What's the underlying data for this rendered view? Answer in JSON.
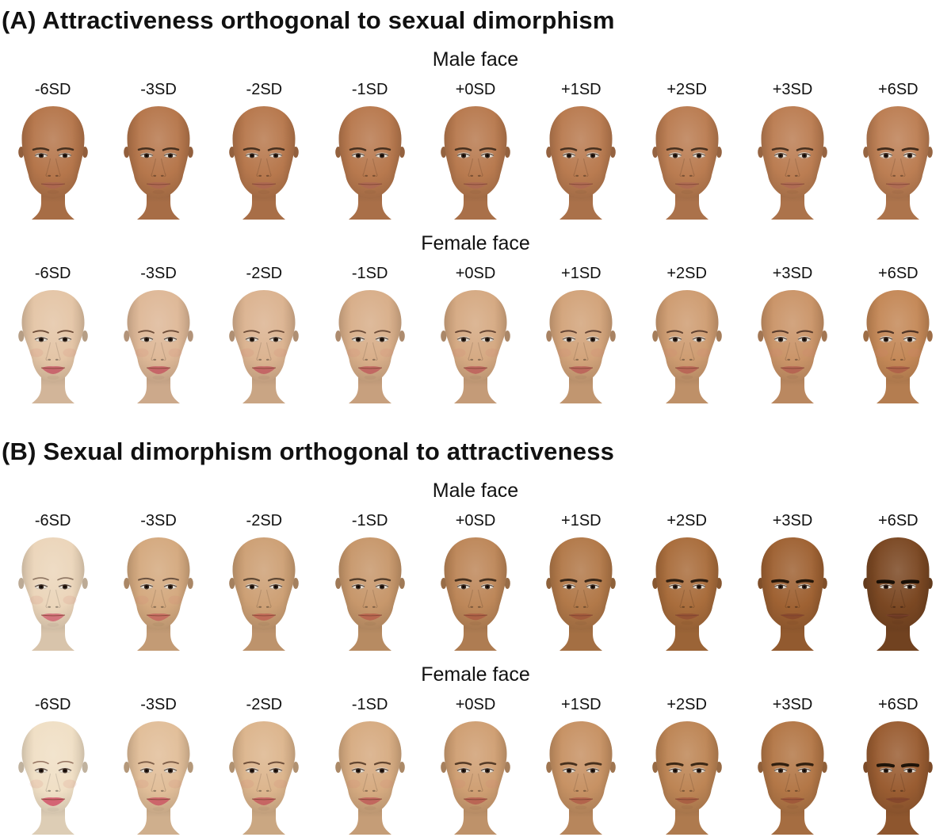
{
  "figure": {
    "panels": [
      {
        "id": "A",
        "title": "(A) Attractiveness orthogonal to sexual dimorphism",
        "rows": [
          {
            "header": "Male face",
            "faces": [
              {
                "label": "-6SD",
                "skin": "#b5764b",
                "lip": "#ab6650",
                "brow": "#46301f",
                "brow_weight": 2.5,
                "jaw_width": 31,
                "eye_open": 0.56,
                "lip_fullness": 6.2,
                "blush": false
              },
              {
                "label": "-3SD",
                "skin": "#b6774c",
                "lip": "#ac6751",
                "brow": "#46301f",
                "brow_weight": 2.5,
                "jaw_width": 31,
                "eye_open": 0.6,
                "lip_fullness": 6.2,
                "blush": false
              },
              {
                "label": "-2SD",
                "skin": "#b7784d",
                "lip": "#ac6751",
                "brow": "#46301f",
                "brow_weight": 2.5,
                "jaw_width": 31,
                "eye_open": 0.63,
                "lip_fullness": 6.2,
                "blush": false
              },
              {
                "label": "-1SD",
                "skin": "#b8794e",
                "lip": "#ad6852",
                "brow": "#46301f",
                "brow_weight": 2.5,
                "jaw_width": 31,
                "eye_open": 0.66,
                "lip_fullness": 6.2,
                "blush": false
              },
              {
                "label": "+0SD",
                "skin": "#b87a4f",
                "lip": "#ad6952",
                "brow": "#46301f",
                "brow_weight": 2.5,
                "jaw_width": 31,
                "eye_open": 0.69,
                "lip_fullness": 6.2,
                "blush": false
              },
              {
                "label": "+1SD",
                "skin": "#b97b50",
                "lip": "#ae6953",
                "brow": "#46301f",
                "brow_weight": 2.5,
                "jaw_width": 31,
                "eye_open": 0.72,
                "lip_fullness": 6.2,
                "blush": false
              },
              {
                "label": "+2SD",
                "skin": "#ba7c51",
                "lip": "#ae6a53",
                "brow": "#46301f",
                "brow_weight": 2.5,
                "jaw_width": 31,
                "eye_open": 0.75,
                "lip_fullness": 6.2,
                "blush": false
              },
              {
                "label": "+3SD",
                "skin": "#bb7d52",
                "lip": "#af6a54",
                "brow": "#46301f",
                "brow_weight": 2.5,
                "jaw_width": 31,
                "eye_open": 0.79,
                "lip_fullness": 6.2,
                "blush": false
              },
              {
                "label": "+6SD",
                "skin": "#bc7e53",
                "lip": "#af6b54",
                "brow": "#402b1b",
                "brow_weight": 2.7,
                "jaw_width": 31,
                "eye_open": 0.88,
                "lip_fullness": 6.2,
                "blush": false
              }
            ]
          },
          {
            "header": "Female face",
            "faces": [
              {
                "label": "-6SD",
                "skin": "#e4c5a6",
                "lip": "#c75f6a",
                "brow": "#6e4d39",
                "brow_weight": 1.8,
                "jaw_width": 26.5,
                "eye_open": 0.64,
                "lip_fullness": 8.2,
                "blush": true
              },
              {
                "label": "-3SD",
                "skin": "#deb897",
                "lip": "#c46065",
                "brow": "#6e4d39",
                "brow_weight": 1.8,
                "jaw_width": 26.5,
                "eye_open": 0.66,
                "lip_fullness": 8.2,
                "blush": true
              },
              {
                "label": "-2SD",
                "skin": "#dbb390",
                "lip": "#c26263",
                "brow": "#6e4d39",
                "brow_weight": 1.8,
                "jaw_width": 26.5,
                "eye_open": 0.68,
                "lip_fullness": 8.2,
                "blush": true
              },
              {
                "label": "-1SD",
                "skin": "#d8ae89",
                "lip": "#c06360",
                "brow": "#6e4d39",
                "brow_weight": 1.8,
                "jaw_width": 26.5,
                "eye_open": 0.7,
                "lip_fullness": 8.1,
                "blush": true
              },
              {
                "label": "+0SD",
                "skin": "#d5a982",
                "lip": "#be645d",
                "brow": "#684735",
                "brow_weight": 1.9,
                "jaw_width": 26.6,
                "eye_open": 0.72,
                "lip_fullness": 8.0,
                "blush": true
              },
              {
                "label": "+1SD",
                "skin": "#d2a37a",
                "lip": "#bb645a",
                "brow": "#644434",
                "brow_weight": 1.9,
                "jaw_width": 26.7,
                "eye_open": 0.74,
                "lip_fullness": 7.9,
                "blush": true
              },
              {
                "label": "+2SD",
                "skin": "#ce9c71",
                "lip": "#b86456",
                "brow": "#604130",
                "brow_weight": 2.0,
                "jaw_width": 26.8,
                "eye_open": 0.77,
                "lip_fullness": 7.8,
                "blush": true
              },
              {
                "label": "+3SD",
                "skin": "#ca9468",
                "lip": "#b46351",
                "brow": "#5a3c2c",
                "brow_weight": 2.1,
                "jaw_width": 26.9,
                "eye_open": 0.8,
                "lip_fullness": 7.6,
                "blush": true
              },
              {
                "label": "+6SD",
                "skin": "#c48857",
                "lip": "#ae6149",
                "brow": "#503425",
                "brow_weight": 2.3,
                "jaw_width": 27.2,
                "eye_open": 0.86,
                "lip_fullness": 7.2,
                "blush": true
              }
            ]
          }
        ]
      },
      {
        "id": "B",
        "title": "(B) Sexual dimorphism orthogonal to attractiveness",
        "rows": [
          {
            "header": "Male face",
            "faces": [
              {
                "label": "-6SD",
                "skin": "#ebd5ba",
                "lip": "#d16c77",
                "brow": "#8e7663",
                "brow_weight": 1.6,
                "jaw_width": 26.0,
                "eye_open": 0.72,
                "lip_fullness": 8.2,
                "blush": true
              },
              {
                "label": "-3SD",
                "skin": "#d4a97f",
                "lip": "#c56a61",
                "brow": "#6d5442",
                "brow_weight": 2.0,
                "jaw_width": 27.6,
                "eye_open": 0.7,
                "lip_fullness": 7.6,
                "blush": true
              },
              {
                "label": "-2SD",
                "skin": "#cda075",
                "lip": "#bf6756",
                "brow": "#5f4834",
                "brow_weight": 2.2,
                "jaw_width": 28.4,
                "eye_open": 0.69,
                "lip_fullness": 7.2,
                "blush": false
              },
              {
                "label": "-1SD",
                "skin": "#c7976b",
                "lip": "#b9644e",
                "brow": "#533d2a",
                "brow_weight": 2.4,
                "jaw_width": 29.2,
                "eye_open": 0.67,
                "lip_fullness": 6.9,
                "blush": false
              },
              {
                "label": "+0SD",
                "skin": "#bd8759",
                "lip": "#ad6045",
                "brow": "#45301e",
                "brow_weight": 2.7,
                "jaw_width": 30.0,
                "eye_open": 0.66,
                "lip_fullness": 6.5,
                "blush": false
              },
              {
                "label": "+1SD",
                "skin": "#b27949",
                "lip": "#a1593c",
                "brow": "#392718",
                "brow_weight": 3.0,
                "jaw_width": 31.0,
                "eye_open": 0.64,
                "lip_fullness": 6.1,
                "blush": false
              },
              {
                "label": "+2SD",
                "skin": "#a96d3c",
                "lip": "#945134",
                "brow": "#2e1e11",
                "brow_weight": 3.3,
                "jaw_width": 32.0,
                "eye_open": 0.62,
                "lip_fullness": 5.8,
                "blush": false
              },
              {
                "label": "+3SD",
                "skin": "#9f6233",
                "lip": "#894a2d",
                "brow": "#25170a",
                "brow_weight": 3.7,
                "jaw_width": 33.0,
                "eye_open": 0.6,
                "lip_fullness": 5.5,
                "blush": false
              },
              {
                "label": "+6SD",
                "skin": "#7b4823",
                "lip": "#683821",
                "brow": "#180f06",
                "brow_weight": 4.4,
                "jaw_width": 35.0,
                "eye_open": 0.54,
                "lip_fullness": 5.0,
                "blush": false
              }
            ]
          },
          {
            "header": "Female face",
            "faces": [
              {
                "label": "-6SD",
                "skin": "#f0dfc5",
                "lip": "#d25a6e",
                "brow": "#947360",
                "brow_weight": 1.5,
                "jaw_width": 25.5,
                "eye_open": 0.76,
                "lip_fullness": 9.2,
                "blush": true
              },
              {
                "label": "-3SD",
                "skin": "#e1be99",
                "lip": "#cb5e67",
                "brow": "#7d5d47",
                "brow_weight": 1.8,
                "jaw_width": 26.6,
                "eye_open": 0.74,
                "lip_fullness": 8.6,
                "blush": true
              },
              {
                "label": "-2SD",
                "skin": "#dcb58d",
                "lip": "#c66061",
                "brow": "#70503b",
                "brow_weight": 2.0,
                "jaw_width": 27.2,
                "eye_open": 0.72,
                "lip_fullness": 8.1,
                "blush": true
              },
              {
                "label": "-1SD",
                "skin": "#d6ab81",
                "lip": "#c0625b",
                "brow": "#624530",
                "brow_weight": 2.2,
                "jaw_width": 27.9,
                "eye_open": 0.7,
                "lip_fullness": 7.7,
                "blush": true
              },
              {
                "label": "+0SD",
                "skin": "#cf9f73",
                "lip": "#b96253",
                "brow": "#543a26",
                "brow_weight": 2.5,
                "jaw_width": 28.7,
                "eye_open": 0.68,
                "lip_fullness": 7.3,
                "blush": true
              },
              {
                "label": "+1SD",
                "skin": "#c79264",
                "lip": "#b1614b",
                "brow": "#47301d",
                "brow_weight": 2.8,
                "jaw_width": 29.6,
                "eye_open": 0.66,
                "lip_fullness": 6.9,
                "blush": false
              },
              {
                "label": "+2SD",
                "skin": "#bd8555",
                "lip": "#a85d42",
                "brow": "#3c2815",
                "brow_weight": 3.1,
                "jaw_width": 30.5,
                "eye_open": 0.64,
                "lip_fullness": 6.4,
                "blush": false
              },
              {
                "label": "+3SD",
                "skin": "#b37747",
                "lip": "#9e573a",
                "brow": "#311f0f",
                "brow_weight": 3.4,
                "jaw_width": 31.4,
                "eye_open": 0.61,
                "lip_fullness": 6.0,
                "blush": false
              },
              {
                "label": "+6SD",
                "skin": "#9a5d32",
                "lip": "#84472b",
                "brow": "#1f1409",
                "brow_weight": 4.1,
                "jaw_width": 33.6,
                "eye_open": 0.56,
                "lip_fullness": 5.3,
                "blush": false
              }
            ]
          }
        ]
      }
    ]
  }
}
